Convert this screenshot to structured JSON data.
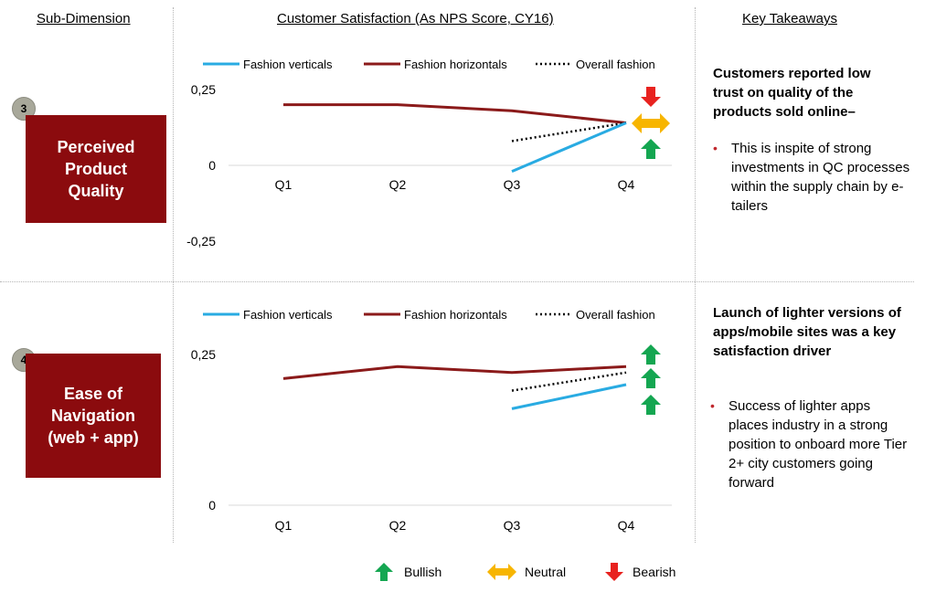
{
  "headers": {
    "sub_dimension": "Sub-Dimension",
    "customer_satisfaction": "Customer Satisfaction (As NPS Score, CY16)",
    "key_takeaways": "Key Takeaways"
  },
  "rows": [
    {
      "number": "3",
      "dimension": "Perceived\nProduct\nQuality",
      "takeaway_heading": "Customers reported low trust on quality of the products sold online–",
      "takeaway_bullet": "This is inspite of strong investments in QC processes within the supply chain by e-tailers"
    },
    {
      "number": "4",
      "dimension": "Ease of\nNavigation\n(web + app)",
      "takeaway_heading": "Launch of lighter versions of apps/mobile sites was a key satisfaction driver",
      "takeaway_bullet": "Success of lighter apps places industry in a strong position to onboard more Tier 2+ city customers going forward"
    }
  ],
  "colors": {
    "fashion_verticals": "#29abe2",
    "fashion_horizontals": "#8b1a1a",
    "overall_fashion": "#000000",
    "bullish": "#14a651",
    "neutral": "#f7b500",
    "bearish": "#e8221f",
    "dimension_box": "#8b0b0e"
  },
  "chart_data": [
    {
      "type": "line",
      "categories": [
        "Q1",
        "Q2",
        "Q3",
        "Q4"
      ],
      "y_tick_labels": [
        "0,25",
        "0",
        "-0,25"
      ],
      "y_ticks": [
        0.25,
        0,
        -0.25
      ],
      "ylim": [
        -0.25,
        0.25
      ],
      "series": [
        {
          "name": "Fashion verticals",
          "values": [
            null,
            null,
            -0.02,
            0.14
          ],
          "style": "solid",
          "color": "#29abe2"
        },
        {
          "name": "Fashion horizontals",
          "values": [
            0.2,
            0.2,
            0.18,
            0.14
          ],
          "style": "solid",
          "color": "#8b1a1a"
        },
        {
          "name": "Overall fashion",
          "values": [
            null,
            null,
            0.08,
            0.14
          ],
          "style": "dotted",
          "color": "#000000"
        }
      ],
      "signals": [
        "bearish",
        "neutral",
        "bullish"
      ]
    },
    {
      "type": "line",
      "categories": [
        "Q1",
        "Q2",
        "Q3",
        "Q4"
      ],
      "y_tick_labels": [
        "0,25",
        "0"
      ],
      "y_ticks": [
        0.25,
        0
      ],
      "ylim": [
        0,
        0.25
      ],
      "series": [
        {
          "name": "Fashion verticals",
          "values": [
            null,
            null,
            0.16,
            0.2
          ],
          "style": "solid",
          "color": "#29abe2"
        },
        {
          "name": "Fashion horizontals",
          "values": [
            0.21,
            0.23,
            0.22,
            0.23
          ],
          "style": "solid",
          "color": "#8b1a1a"
        },
        {
          "name": "Overall fashion",
          "values": [
            null,
            null,
            0.19,
            0.22
          ],
          "style": "dotted",
          "color": "#000000"
        }
      ],
      "signals": [
        "bullish",
        "bullish",
        "bullish"
      ]
    }
  ],
  "signal_legend": [
    {
      "key": "bullish",
      "label": "Bullish"
    },
    {
      "key": "neutral",
      "label": "Neutral"
    },
    {
      "key": "bearish",
      "label": "Bearish"
    }
  ]
}
